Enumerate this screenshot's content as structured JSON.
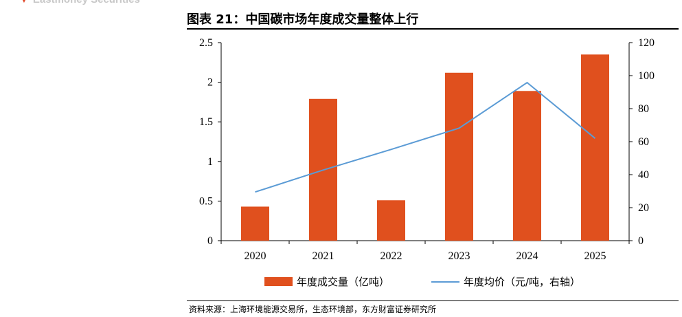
{
  "header": {
    "brand": "Eastmoney Securities",
    "figure_title": "图表 21：中国碳市场年度成交量整体上行"
  },
  "footer": {
    "source": "资料来源：上海环境能源交易所，生态环境部，东方财富证券研究所"
  },
  "colors": {
    "bar": "#e0501e",
    "line": "#5b9bd5",
    "brand_logo": "#e0492a"
  },
  "chart_data": {
    "type": "bar+line",
    "categories": [
      "2020",
      "2021",
      "2022",
      "2023",
      "2024",
      "2025"
    ],
    "series": [
      {
        "name": "年度成交量（亿吨）",
        "kind": "bar",
        "axis": "left",
        "values": [
          0.43,
          1.79,
          0.51,
          2.12,
          1.89,
          2.35
        ]
      },
      {
        "name": "年度均价（元/吨，右轴）",
        "kind": "line",
        "axis": "right",
        "values": [
          29.5,
          42.8,
          55.3,
          68.2,
          95.8,
          62.0
        ]
      }
    ],
    "y_left": {
      "range": [
        0,
        2.5
      ],
      "ticks": [
        "0",
        "0.5",
        "1",
        "1.5",
        "2",
        "2.5"
      ]
    },
    "y_right": {
      "range": [
        0,
        120
      ],
      "ticks": [
        "0",
        "20",
        "40",
        "60",
        "80",
        "100",
        "120"
      ]
    },
    "legend_position": "bottom",
    "grid": false
  }
}
